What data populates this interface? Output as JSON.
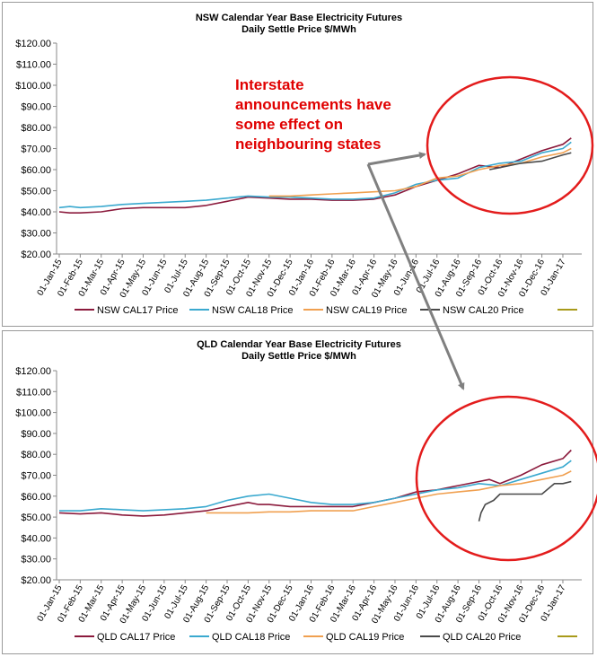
{
  "colors": {
    "CAL17": "#8b1a3c",
    "CAL18": "#3aa9cf",
    "CAL19": "#f0a050",
    "CAL20": "#4a4a4a",
    "extra": "#a89a1a",
    "circle": "#e31c1c",
    "arrow": "#808080",
    "annotation": "#e00000"
  },
  "annotation": {
    "lines": [
      "Interstate",
      "announcements have",
      "some effect on",
      "neighbouring states"
    ]
  },
  "chart_data": [
    {
      "type": "line",
      "title": "NSW Calendar Year Base Electricity Futures",
      "subtitle": "Daily Settle Price $/MWh",
      "ylim": [
        20,
        120
      ],
      "yticks": [
        "$20.00",
        "$30.00",
        "$40.00",
        "$50.00",
        "$60.00",
        "$70.00",
        "$80.00",
        "$90.00",
        "$100.00",
        "$110.00",
        "$120.00"
      ],
      "categories": [
        "01-Jan-15",
        "01-Feb-15",
        "01-Mar-15",
        "01-Apr-15",
        "01-May-15",
        "01-Jun-15",
        "01-Jul-15",
        "01-Aug-15",
        "01-Sep-15",
        "01-Oct-15",
        "01-Nov-15",
        "01-Dec-15",
        "01-Jan-16",
        "01-Feb-16",
        "01-Mar-16",
        "01-Apr-16",
        "01-May-16",
        "01-Jun-16",
        "01-Jul-16",
        "01-Aug-16",
        "01-Sep-16",
        "01-Oct-16",
        "01-Nov-16",
        "01-Dec-16",
        "01-Jan-17"
      ],
      "legend": [
        "NSW CAL17 Price",
        "NSW CAL18 Price",
        "NSW CAL19 Price",
        "NSW CAL20 Price"
      ],
      "series": [
        {
          "name": "NSW CAL17 Price",
          "key": "CAL17",
          "x": [
            0,
            0.5,
            1,
            2,
            3,
            4,
            5,
            6,
            7,
            8,
            9,
            10,
            11,
            12,
            13,
            14,
            15,
            16,
            17,
            18,
            19,
            20,
            21,
            22,
            23,
            24,
            24.4
          ],
          "values": [
            40,
            39.5,
            39.5,
            40,
            41.5,
            42,
            42,
            42,
            43,
            45,
            47,
            46.5,
            46,
            46,
            45.5,
            45.5,
            46,
            48,
            52,
            55,
            58,
            62,
            61,
            65,
            69,
            72,
            75
          ]
        },
        {
          "name": "NSW CAL18 Price",
          "key": "CAL18",
          "x": [
            0,
            0.5,
            1,
            2,
            3,
            4,
            5,
            6,
            7,
            8,
            9,
            10,
            11,
            12,
            13,
            14,
            15,
            16,
            17,
            18,
            19,
            20,
            21,
            22,
            23,
            24,
            24.4
          ],
          "values": [
            42,
            42.5,
            42,
            42.5,
            43.5,
            44,
            44.5,
            45,
            45.5,
            46.5,
            47.5,
            47,
            47,
            46.5,
            46,
            46,
            46.5,
            49,
            53,
            55,
            56,
            61,
            63,
            64,
            68,
            70,
            73
          ]
        },
        {
          "name": "NSW CAL19 Price",
          "key": "CAL19",
          "x": [
            10,
            11,
            12,
            13,
            14,
            15,
            16,
            17,
            18,
            19,
            20,
            21,
            22,
            23,
            24,
            24.4
          ],
          "values": [
            47.5,
            47.5,
            48,
            48.5,
            49,
            49.5,
            50,
            52,
            56,
            57,
            60,
            62,
            63,
            66,
            68,
            70
          ]
        },
        {
          "name": "NSW CAL20 Price",
          "key": "CAL20",
          "x": [
            20.5,
            21,
            22,
            23,
            24,
            24.4
          ],
          "values": [
            60,
            61,
            63,
            64,
            67,
            68
          ]
        }
      ]
    },
    {
      "type": "line",
      "title": "QLD Calendar Year Base Electricity Futures",
      "subtitle": "Daily Settle Price $/MWh",
      "ylim": [
        20,
        120
      ],
      "yticks": [
        "$20.00",
        "$30.00",
        "$40.00",
        "$50.00",
        "$60.00",
        "$70.00",
        "$80.00",
        "$90.00",
        "$100.00",
        "$110.00",
        "$120.00"
      ],
      "categories": [
        "01-Jan-15",
        "01-Feb-15",
        "01-Mar-15",
        "01-Apr-15",
        "01-May-15",
        "01-Jun-15",
        "01-Jul-15",
        "01-Aug-15",
        "01-Sep-15",
        "01-Oct-15",
        "01-Nov-15",
        "01-Dec-15",
        "01-Jan-16",
        "01-Feb-16",
        "01-Mar-16",
        "01-Apr-16",
        "01-May-16",
        "01-Jun-16",
        "01-Jul-16",
        "01-Aug-16",
        "01-Sep-16",
        "01-Oct-16",
        "01-Nov-16",
        "01-Dec-16",
        "01-Jan-17"
      ],
      "legend": [
        "QLD CAL17 Price",
        "QLD CAL18 Price",
        "QLD CAL19 Price",
        "QLD CAL20 Price"
      ],
      "series": [
        {
          "name": "QLD CAL17 Price",
          "key": "CAL17",
          "x": [
            0,
            1,
            2,
            3,
            4,
            5,
            6,
            7,
            8,
            9,
            9.5,
            10,
            11,
            12,
            13,
            14,
            15,
            16,
            17,
            18,
            19,
            20,
            20.5,
            21,
            22,
            23,
            24,
            24.4
          ],
          "values": [
            52,
            51.5,
            52,
            51,
            50.5,
            51,
            52,
            53,
            55,
            57,
            56,
            56,
            55,
            55,
            55,
            55,
            57,
            59,
            62,
            63,
            65,
            67,
            68,
            66,
            70,
            75,
            78,
            82
          ]
        },
        {
          "name": "QLD CAL18 Price",
          "key": "CAL18",
          "x": [
            0,
            1,
            2,
            3,
            4,
            5,
            6,
            7,
            8,
            9,
            10,
            11,
            12,
            13,
            14,
            15,
            16,
            17,
            18,
            19,
            20,
            21,
            22,
            23,
            24,
            24.4
          ],
          "values": [
            53,
            53,
            54,
            53.5,
            53,
            53.5,
            54,
            55,
            58,
            60,
            61,
            59,
            57,
            56,
            56,
            57,
            59,
            61,
            63,
            64,
            66,
            65,
            68,
            71,
            74,
            77
          ]
        },
        {
          "name": "QLD CAL19 Price",
          "key": "CAL19",
          "x": [
            7,
            8,
            9,
            10,
            11,
            12,
            13,
            14,
            15,
            16,
            17,
            18,
            19,
            20,
            21,
            22,
            23,
            24,
            24.4
          ],
          "values": [
            52,
            52,
            52,
            52.5,
            52.5,
            53,
            53,
            53,
            55,
            57,
            59,
            61,
            62,
            63,
            65,
            66,
            68,
            70,
            72
          ]
        },
        {
          "name": "QLD CAL20 Price",
          "key": "CAL20",
          "x": [
            20,
            20.1,
            20.3,
            20.7,
            21,
            23,
            23.6,
            24,
            24.4
          ],
          "values": [
            48,
            52,
            56,
            58,
            61,
            61,
            66,
            66,
            67
          ]
        }
      ]
    }
  ]
}
